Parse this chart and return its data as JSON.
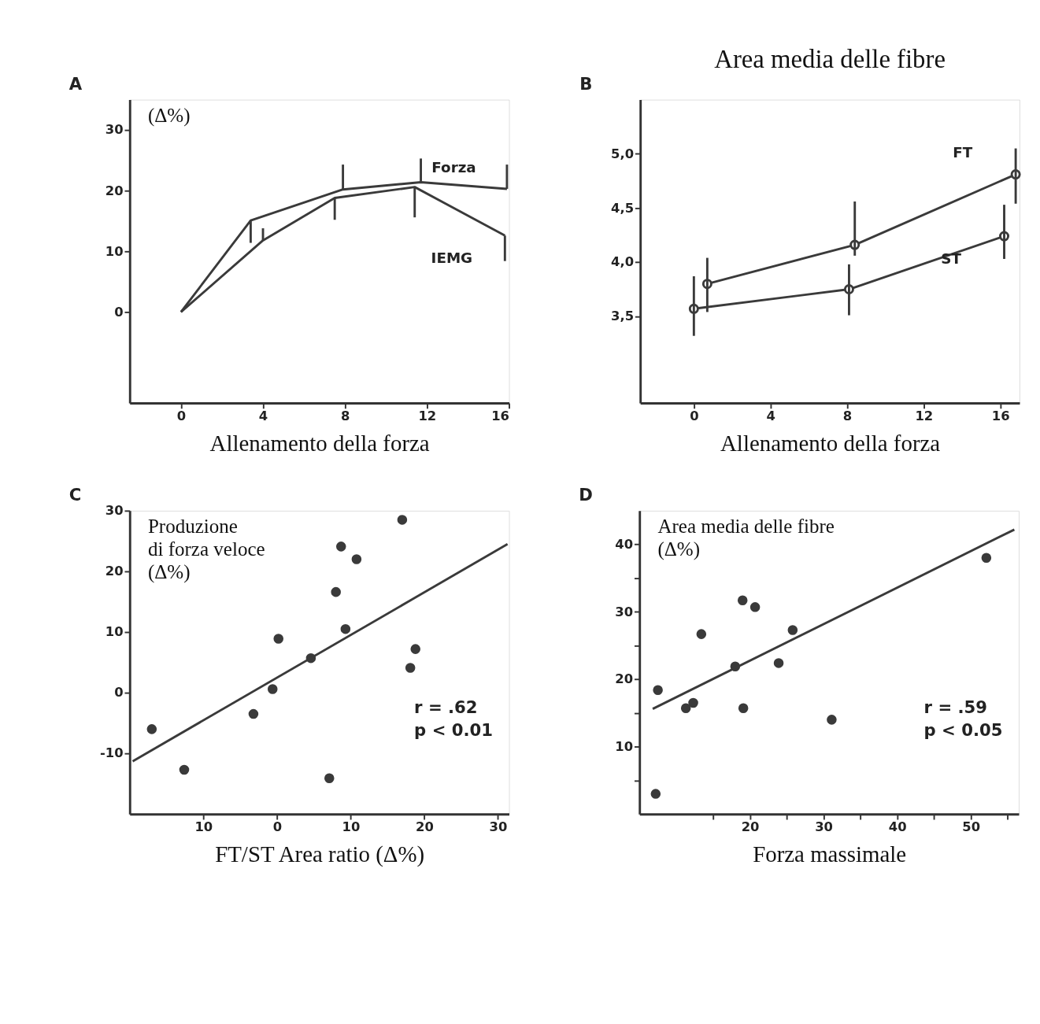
{
  "chart_data": [
    {
      "type": "line",
      "xlabel": "Allenamento della forza",
      "ylabel": "(Δ%)",
      "annotations": [
        "A"
      ],
      "marker": "none",
      "xlim": [
        -2.5,
        16
      ],
      "xticks": [
        0,
        4,
        8,
        12,
        16
      ],
      "ylim": [
        -15,
        35
      ],
      "yticks": [
        0,
        10,
        20,
        30
      ],
      "series": [
        {
          "name": "Forza",
          "color": "#3a3a3a",
          "x": [
            0,
            3.4,
            7.9,
            11.7,
            15.9
          ],
          "values": [
            0,
            15.1,
            20.2,
            21.4,
            20.3
          ],
          "errors": [
            null,
            [
              11.4,
              15.1
            ],
            [
              20.2,
              24.3
            ],
            [
              21.4,
              25.3
            ],
            [
              20.3,
              24.3
            ]
          ]
        },
        {
          "name": "IEMG",
          "color": "#3a3a3a",
          "x": [
            0,
            4.0,
            7.5,
            11.4,
            15.8
          ],
          "values": [
            0,
            11.8,
            18.8,
            20.6,
            12.6
          ],
          "errors": [
            null,
            [
              11.8,
              13.8
            ],
            [
              15.2,
              18.8
            ],
            [
              15.6,
              20.6
            ],
            [
              8.4,
              12.6
            ]
          ]
        }
      ]
    },
    {
      "type": "line",
      "title": "Area media delle fibre",
      "xlabel": "Allenamento della forza",
      "annotations": [
        "B"
      ],
      "marker": "circle",
      "xlim": [
        -2.8,
        17
      ],
      "xticks": [
        0,
        4,
        8,
        12,
        16
      ],
      "ylim": [
        2.7,
        5.5
      ],
      "yticks": [
        {
          "value": 3.5,
          "label": "3,5"
        },
        {
          "value": 4.0,
          "label": "4,0"
        },
        {
          "value": 4.5,
          "label": "4,5"
        },
        {
          "value": 5.0,
          "label": "5,0"
        }
      ],
      "series": [
        {
          "name": "FT",
          "color": "#3a3a3a",
          "x": [
            0.7,
            8.4,
            16.8
          ],
          "values": [
            3.8,
            4.16,
            4.81
          ],
          "errors": [
            [
              3.54,
              4.04
            ],
            [
              4.06,
              4.56
            ],
            [
              4.54,
              5.05
            ]
          ]
        },
        {
          "name": "ST",
          "color": "#3a3a3a",
          "x": [
            0,
            8.1,
            16.2
          ],
          "values": [
            3.57,
            3.75,
            4.24
          ],
          "errors": [
            [
              3.32,
              3.87
            ],
            [
              3.51,
              3.98
            ],
            [
              4.03,
              4.53
            ]
          ]
        }
      ]
    },
    {
      "type": "scatter",
      "xlabel": "FT/ST Area ratio (Δ%)",
      "ylabel": "Produzione\ndi forza veloce\n(Δ%)",
      "annotations": [
        "C",
        "r = .62\np < 0.01"
      ],
      "marker": "circle",
      "xlim": [
        -20,
        31.5
      ],
      "xticks": [
        {
          "value": -10,
          "label": "10"
        },
        0,
        10,
        20,
        30
      ],
      "ylim": [
        -20,
        30
      ],
      "yticks": [
        -10,
        0,
        10,
        20,
        30
      ],
      "series": [
        {
          "color": "#3a3a3a",
          "x": [
            -17.0,
            -12.6,
            -3.2,
            -0.6,
            0.2,
            4.6,
            7.1,
            8.0,
            8.7,
            9.3,
            10.8,
            17.0,
            18.8,
            18.1
          ],
          "values": [
            -6.0,
            -12.7,
            -3.5,
            0.6,
            8.9,
            5.7,
            -14.1,
            16.6,
            24.1,
            10.5,
            22.0,
            28.5,
            7.2,
            4.1
          ]
        },
        {
          "type": "line",
          "marker": "none",
          "color": "#3a3a3a",
          "x": [
            -19.6,
            31.3
          ],
          "values": [
            -11.3,
            24.5
          ]
        }
      ]
    },
    {
      "type": "scatter",
      "xlabel": "Forza massimale",
      "ylabel": "Area media delle fibre\n(Δ%)",
      "annotations": [
        "D",
        "r = .59\np < 0.05"
      ],
      "marker": "circle",
      "xlim": [
        5,
        56.5
      ],
      "xticks": [
        {
          "value": 15,
          "label": null
        },
        20,
        {
          "value": 25,
          "label": null
        },
        30,
        {
          "value": 35,
          "label": null
        },
        40,
        {
          "value": 45,
          "label": null
        },
        50,
        {
          "value": 55,
          "label": null
        }
      ],
      "ylim": [
        0,
        45
      ],
      "yticks": [
        {
          "value": 5,
          "label": null
        },
        10,
        {
          "value": 15,
          "label": null
        },
        20,
        {
          "value": 25,
          "label": null
        },
        30,
        {
          "value": 35,
          "label": null
        },
        40
      ],
      "series": [
        {
          "color": "#3a3a3a",
          "x": [
            7.5,
            7.2,
            11.3,
            12.3,
            13.4,
            18.0,
            19.0,
            19.1,
            20.7,
            23.9,
            25.8,
            31.1,
            52.1
          ],
          "values": [
            18.4,
            3.0,
            15.7,
            16.5,
            26.7,
            21.9,
            31.7,
            15.7,
            30.7,
            22.4,
            27.3,
            14.0,
            38.0
          ]
        },
        {
          "type": "line",
          "marker": "none",
          "color": "#3a3a3a",
          "x": [
            6.8,
            55.9
          ],
          "values": [
            15.6,
            42.2
          ]
        }
      ]
    }
  ]
}
